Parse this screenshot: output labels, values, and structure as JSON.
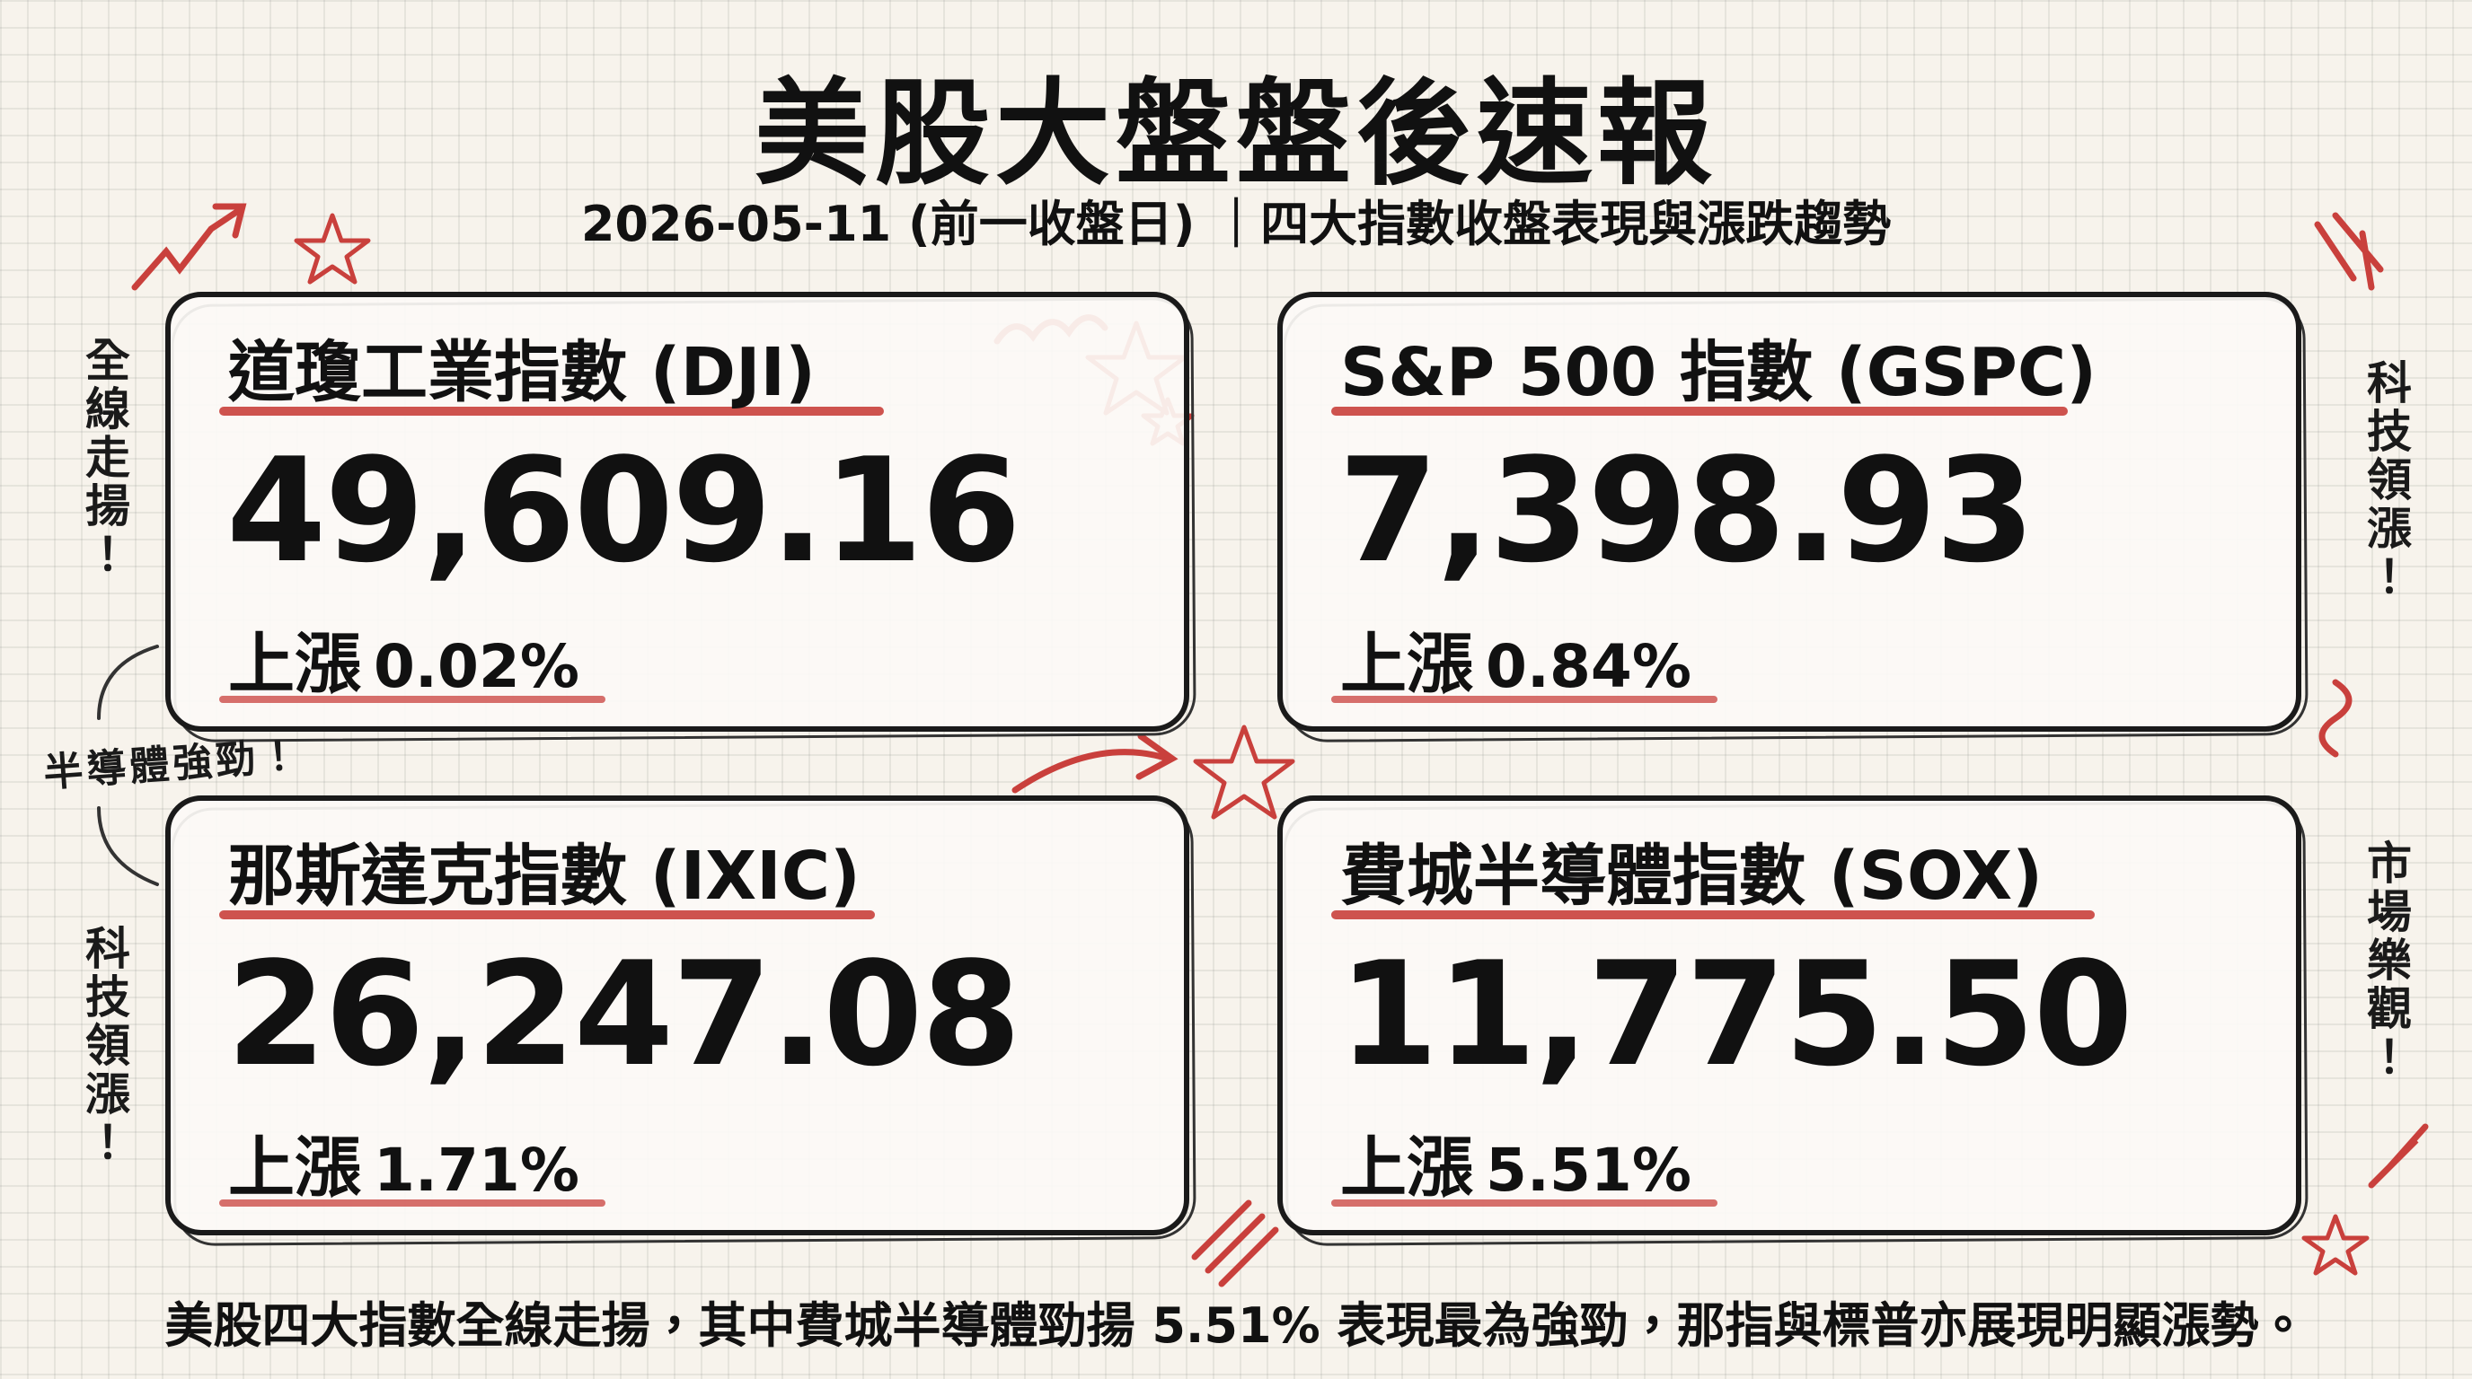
{
  "header": {
    "title": "美股大盤盤後速報",
    "subtitle": "2026-05-11 (前一收盤日) ｜四大指數收盤表現與漲跌趨勢"
  },
  "cards": [
    {
      "name": "道瓊工業指數 (DJI)",
      "value": "49,609.16",
      "direction": "上漲",
      "change": "0.02%"
    },
    {
      "name": "S&P 500 指數 (GSPC)",
      "value": "7,398.93",
      "direction": "上漲",
      "change": "0.84%"
    },
    {
      "name": "那斯達克指數 (IXIC)",
      "value": "26,247.08",
      "direction": "上漲",
      "change": "1.71%"
    },
    {
      "name": "費城半導體指數 (SOX)",
      "value": "11,775.50",
      "direction": "上漲",
      "change": "5.51%"
    }
  ],
  "side_notes": [
    "全線走揚！",
    "半導體強勁！",
    "科技領漲！",
    "科技領漲！",
    "市場樂觀！"
  ],
  "footer": "美股四大指數全線走揚，其中費城半導體勁揚 5.51% 表現最為強勁，那指與標普亦展現明顯漲勢。"
}
